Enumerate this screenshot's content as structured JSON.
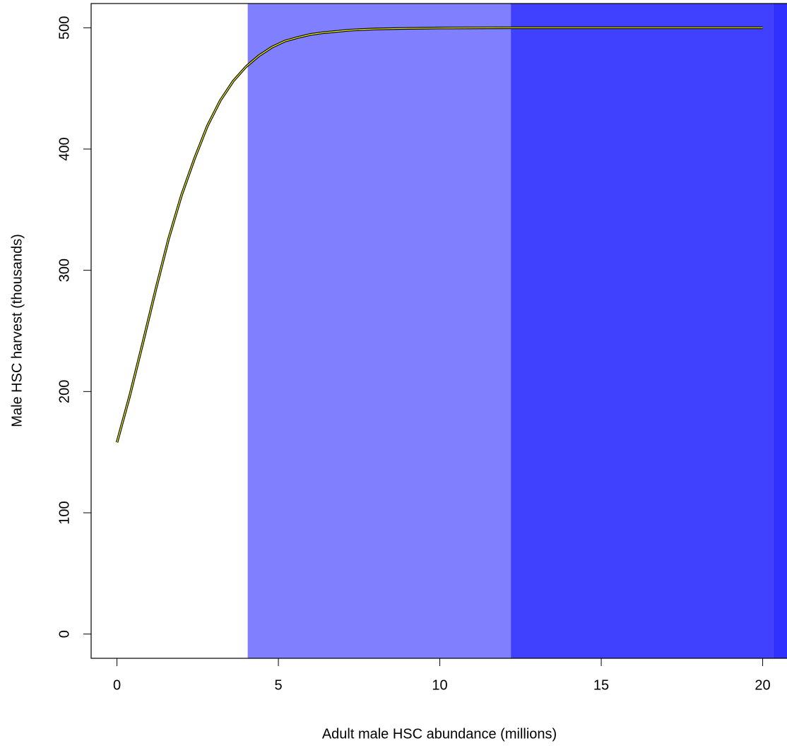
{
  "chart_data": {
    "type": "line",
    "x_label": "Adult male HSC abundance (millions)",
    "y_label": "Male HSC harvest (thousands)",
    "x": [
      0,
      0.4,
      0.8,
      1.2,
      1.6,
      2.0,
      2.4,
      2.8,
      3.2,
      3.6,
      4.0,
      4.4,
      4.8,
      5.2,
      5.6,
      6.0,
      6.4,
      6.8,
      7.2,
      7.6,
      8,
      9,
      10,
      12,
      14,
      16,
      18,
      20
    ],
    "series": [
      {
        "color": "#000000",
        "inner_color": "#ffff00",
        "values": [
          158,
          197,
          240,
          284,
          326,
          362,
          392,
          419,
          440,
          456,
          468,
          477,
          484,
          489,
          492,
          494.5,
          496,
          497,
          498,
          498.6,
          499,
          499.5,
          499.8,
          500,
          500,
          500,
          500,
          500
        ]
      }
    ],
    "bands": [
      {
        "from": 4.05,
        "to": 12.2,
        "color": "#8080ff"
      },
      {
        "from": 12.2,
        "to": 20.33,
        "color": "#4040ff"
      },
      {
        "from": 20.33,
        "to": 21,
        "color": "#3030ff"
      }
    ],
    "xlim": [
      -0.8,
      20.8
    ],
    "xticks": [
      0,
      5,
      10,
      15,
      20
    ],
    "ylim": [
      -20,
      520
    ],
    "yticks": [
      0,
      100,
      200,
      300,
      400,
      500
    ]
  }
}
